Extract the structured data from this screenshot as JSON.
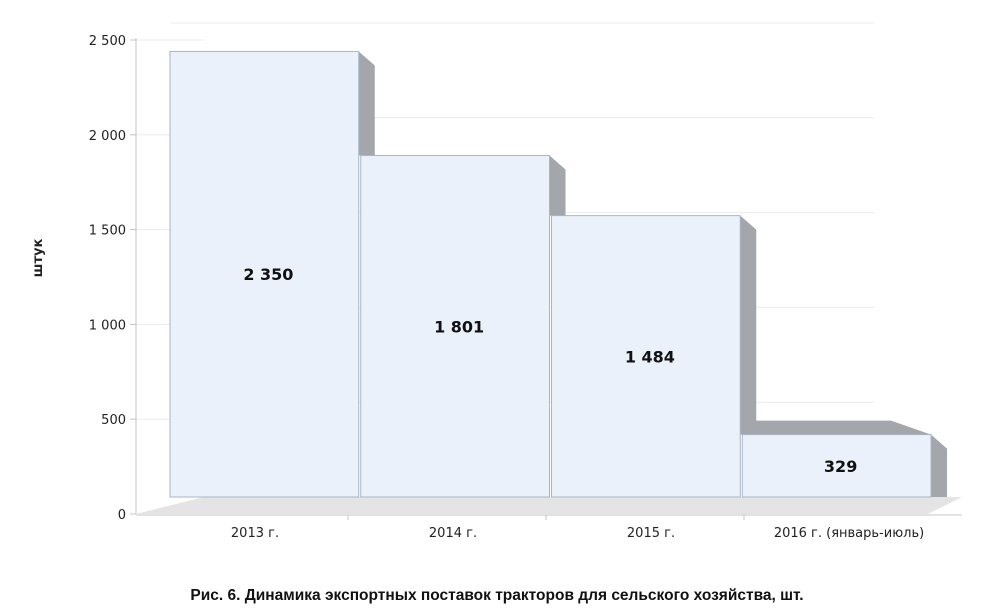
{
  "chart_data": {
    "type": "bar",
    "categories": [
      "2013 г.",
      "2014 г.",
      "2015 г.",
      "2016 г. (январь-июль)"
    ],
    "values": [
      2350,
      1801,
      1484,
      329
    ],
    "value_labels": [
      "2 350",
      "1 801",
      "1 484",
      "329"
    ],
    "ylabel": "штук",
    "ylim": [
      0,
      2500
    ],
    "yticks": [
      0,
      500,
      1000,
      1500,
      2000,
      2500
    ],
    "ytick_labels": [
      "0",
      "500",
      "1 000",
      "1 500",
      "2 000",
      "2 500"
    ],
    "grid": true,
    "style": "3d",
    "colors": {
      "bar_face": "#eaf1fb",
      "bar_edge": "#a9b6c6",
      "bar_side": "#a3a6aa",
      "floor": "#e4e4e4",
      "grid": "#e9ecef",
      "axis": "#c0c4c8",
      "text": "#222222"
    }
  },
  "caption": "Рис. 6. Динамика экспортных поставок тракторов для сельского хозяйства, шт."
}
